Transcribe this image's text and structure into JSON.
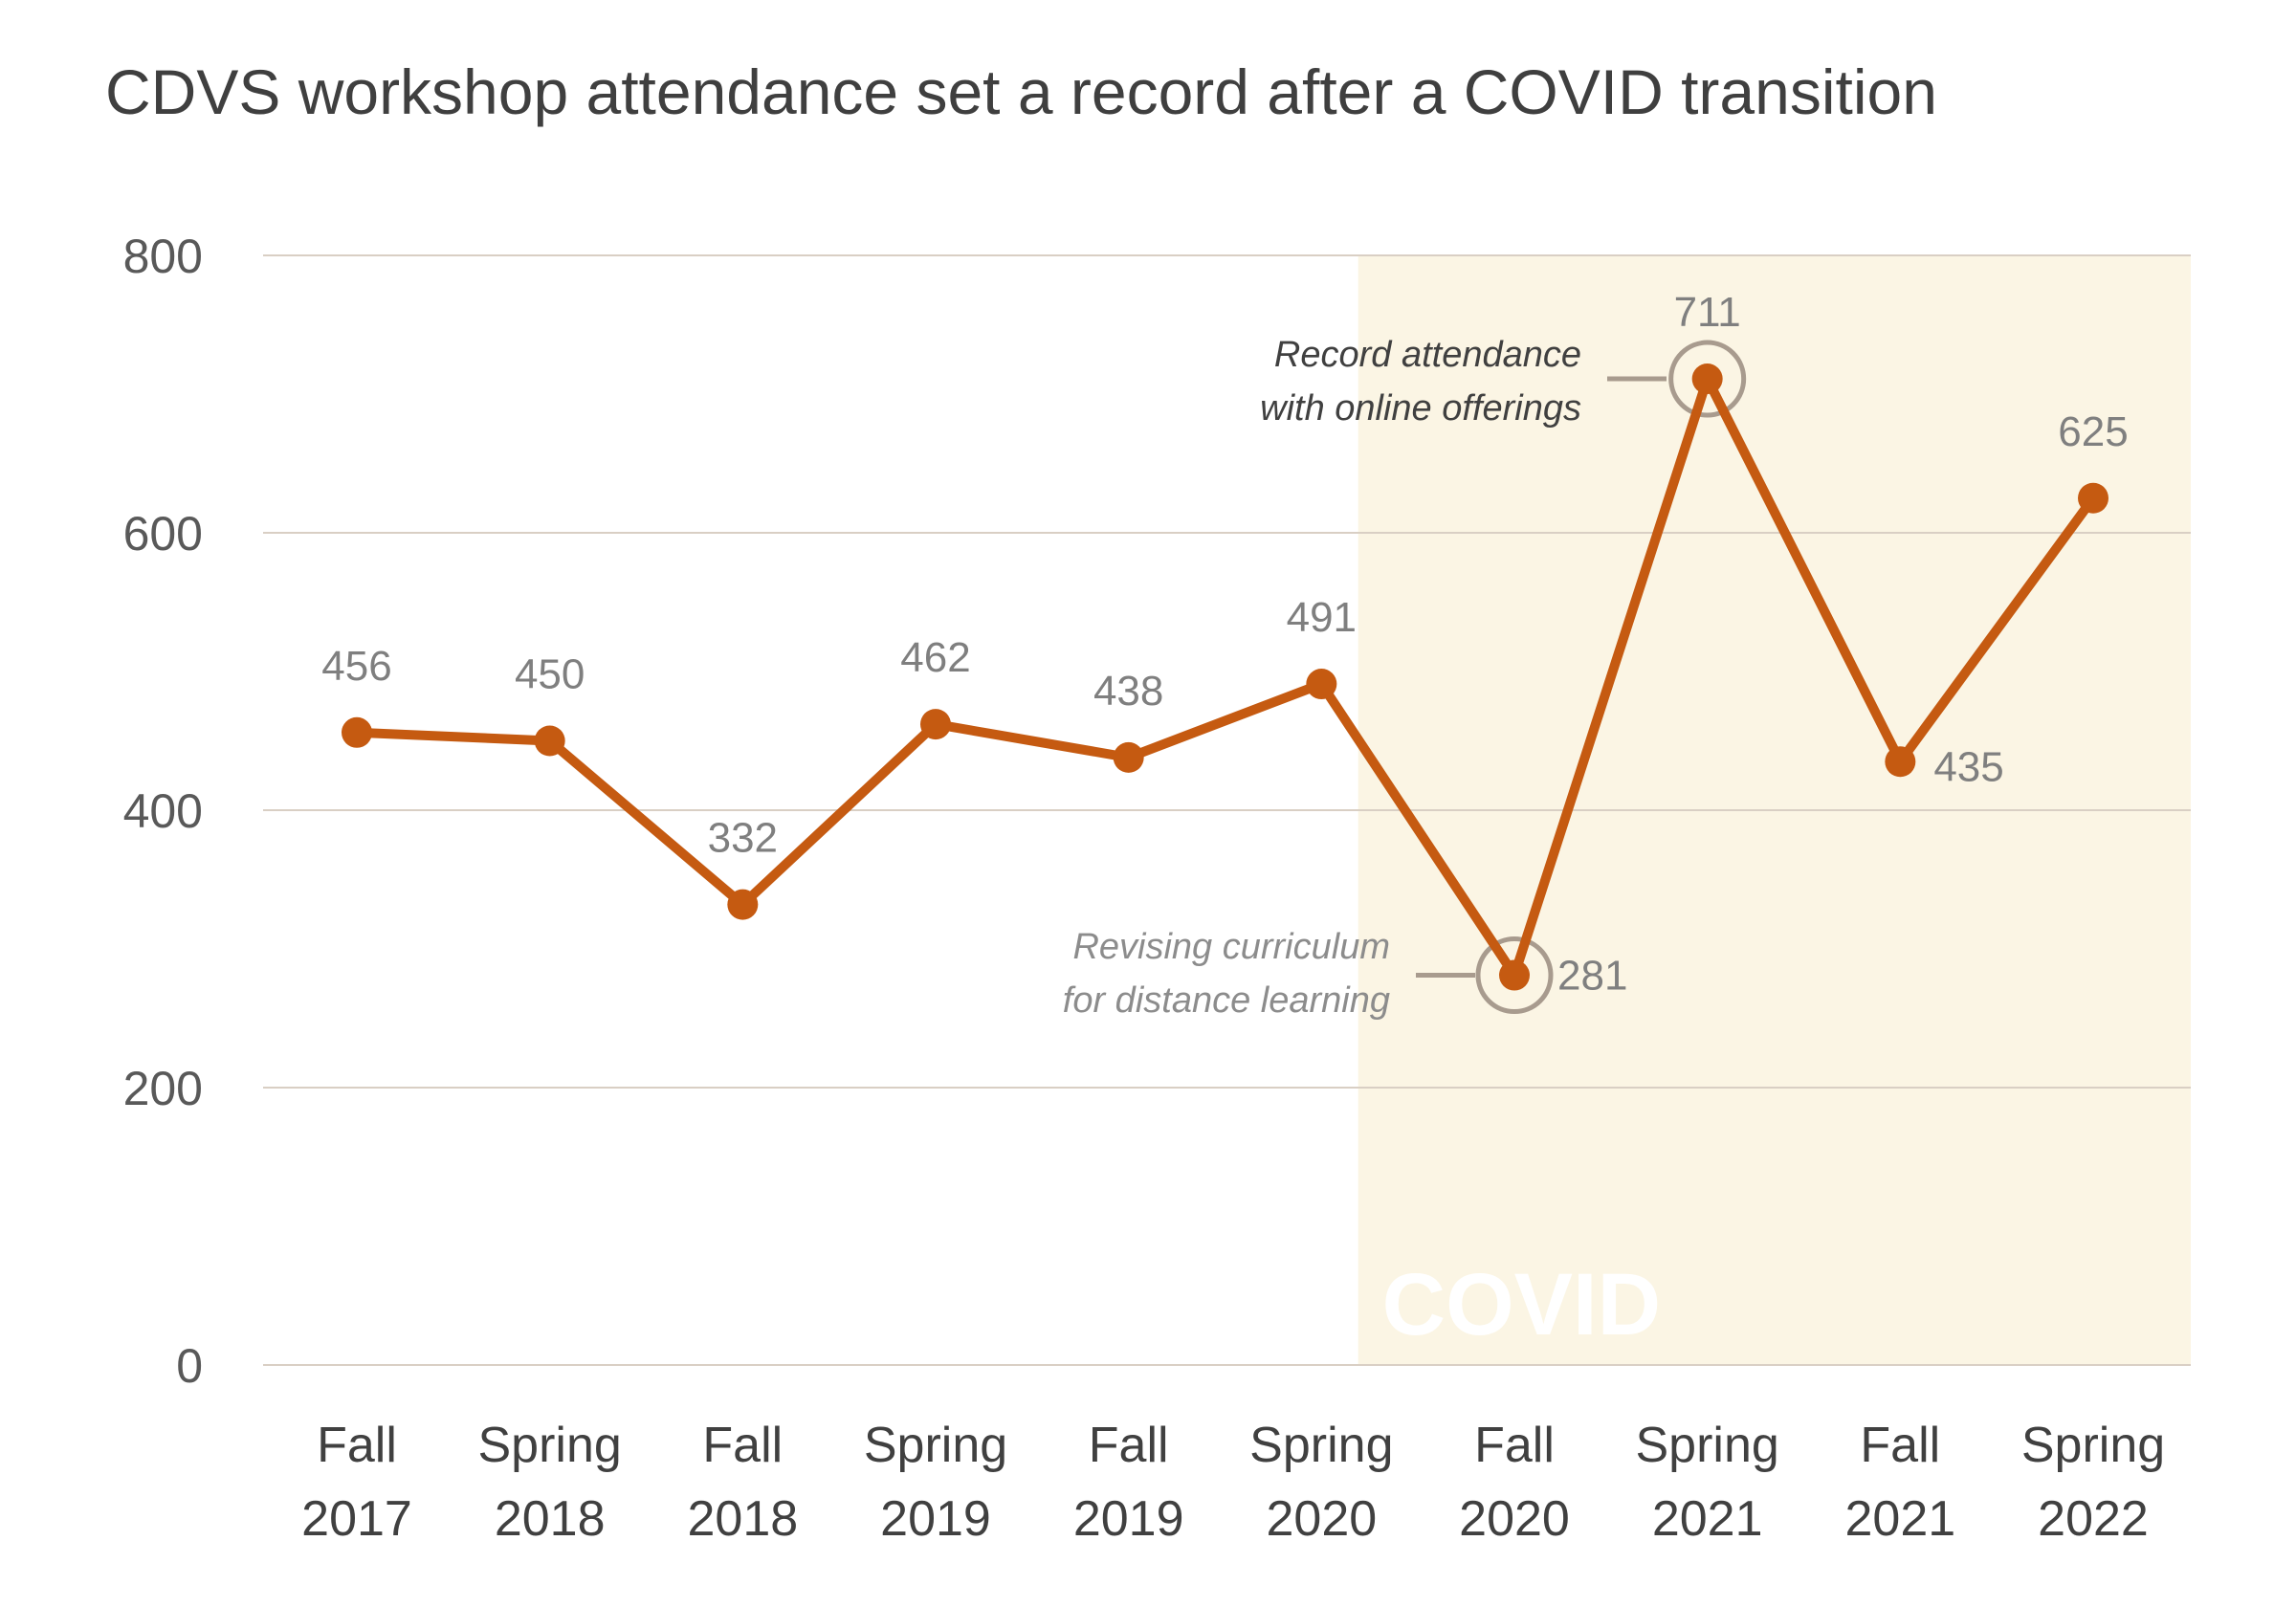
{
  "chart_data": {
    "type": "line",
    "title": "CDVS workshop attendance set a record after a COVID transition",
    "xlabel": "",
    "ylabel": "",
    "ylim": [
      0,
      800
    ],
    "yticks": [
      0,
      200,
      400,
      600,
      800
    ],
    "grid": true,
    "categories": [
      [
        "Fall",
        "2017"
      ],
      [
        "Spring",
        "2018"
      ],
      [
        "Fall",
        "2018"
      ],
      [
        "Spring",
        "2019"
      ],
      [
        "Fall",
        "2019"
      ],
      [
        "Spring",
        "2020"
      ],
      [
        "Fall",
        "2020"
      ],
      [
        "Spring",
        "2021"
      ],
      [
        "Fall",
        "2021"
      ],
      [
        "Spring",
        "2022"
      ]
    ],
    "series": [
      {
        "values": [
          456,
          450,
          332,
          462,
          438,
          491,
          281,
          711,
          435,
          625
        ],
        "color": "#C55A11"
      }
    ],
    "shaded_region": {
      "label": "COVID",
      "from_category": "Spring 2020",
      "to_category": "Spring 2022",
      "color": "#FBF5E4"
    },
    "annotations": [
      {
        "category_index": 6,
        "text": [
          "Revising curriculum",
          "for distance learning"
        ],
        "color": "#8c8c8c"
      },
      {
        "category_index": 7,
        "text": [
          "Record attendance",
          "with online offerings"
        ],
        "color": "#404040"
      }
    ],
    "colors": {
      "line": "#C55A11",
      "grid": "#d9cfc4",
      "covid_band": "#FBF5E4",
      "annotation_circle": "#a89b8e"
    }
  }
}
